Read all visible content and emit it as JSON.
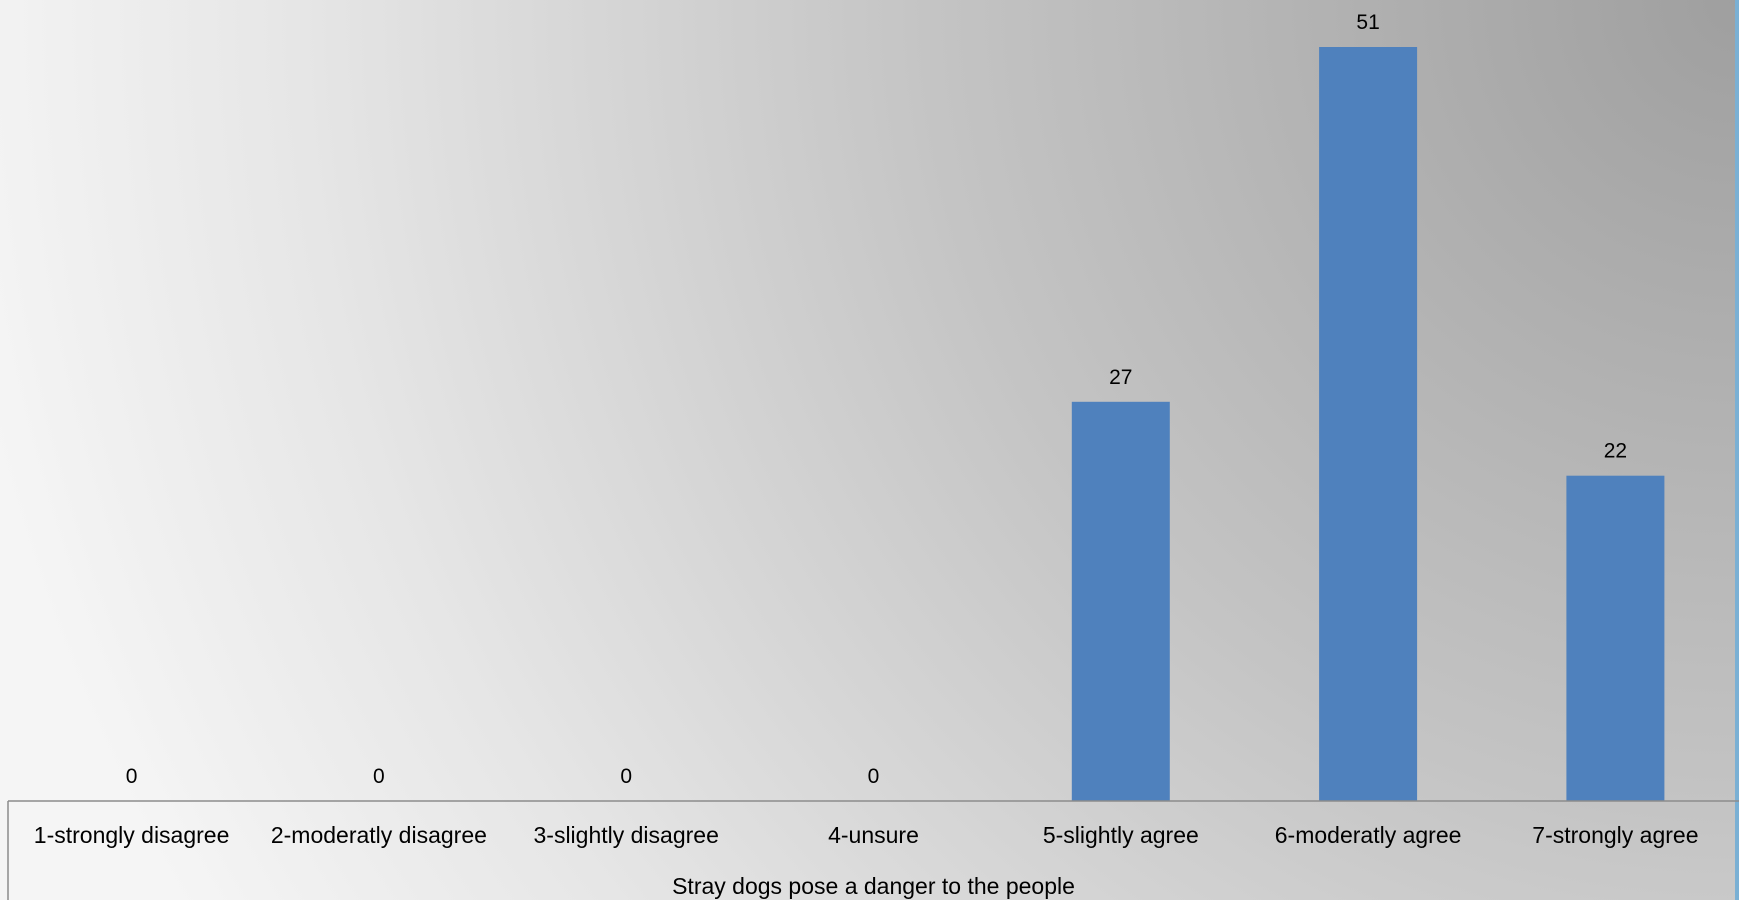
{
  "chart_data": {
    "type": "bar",
    "categories": [
      "1-strongly disagree",
      "2-moderatly disagree",
      "3-slightly disagree",
      "4-unsure",
      "5-slightly agree",
      "6-moderatly agree",
      "7-strongly agree"
    ],
    "values": [
      0,
      0,
      0,
      0,
      27,
      51,
      22
    ],
    "data_labels": [
      "0",
      "0",
      "0",
      "0",
      "27",
      "51",
      "22"
    ],
    "title": "",
    "xlabel": "Stray dogs pose a danger to the people",
    "ylabel": "",
    "ylim": [
      0,
      51
    ],
    "grid": false,
    "legend": "none",
    "colors": {
      "bar": "#4F81BD",
      "axis_line": "#8C8C8C",
      "background_light": "#f5f5f5",
      "background_dark": "#9f9f9f",
      "right_edge": "#7ab0d4"
    }
  }
}
